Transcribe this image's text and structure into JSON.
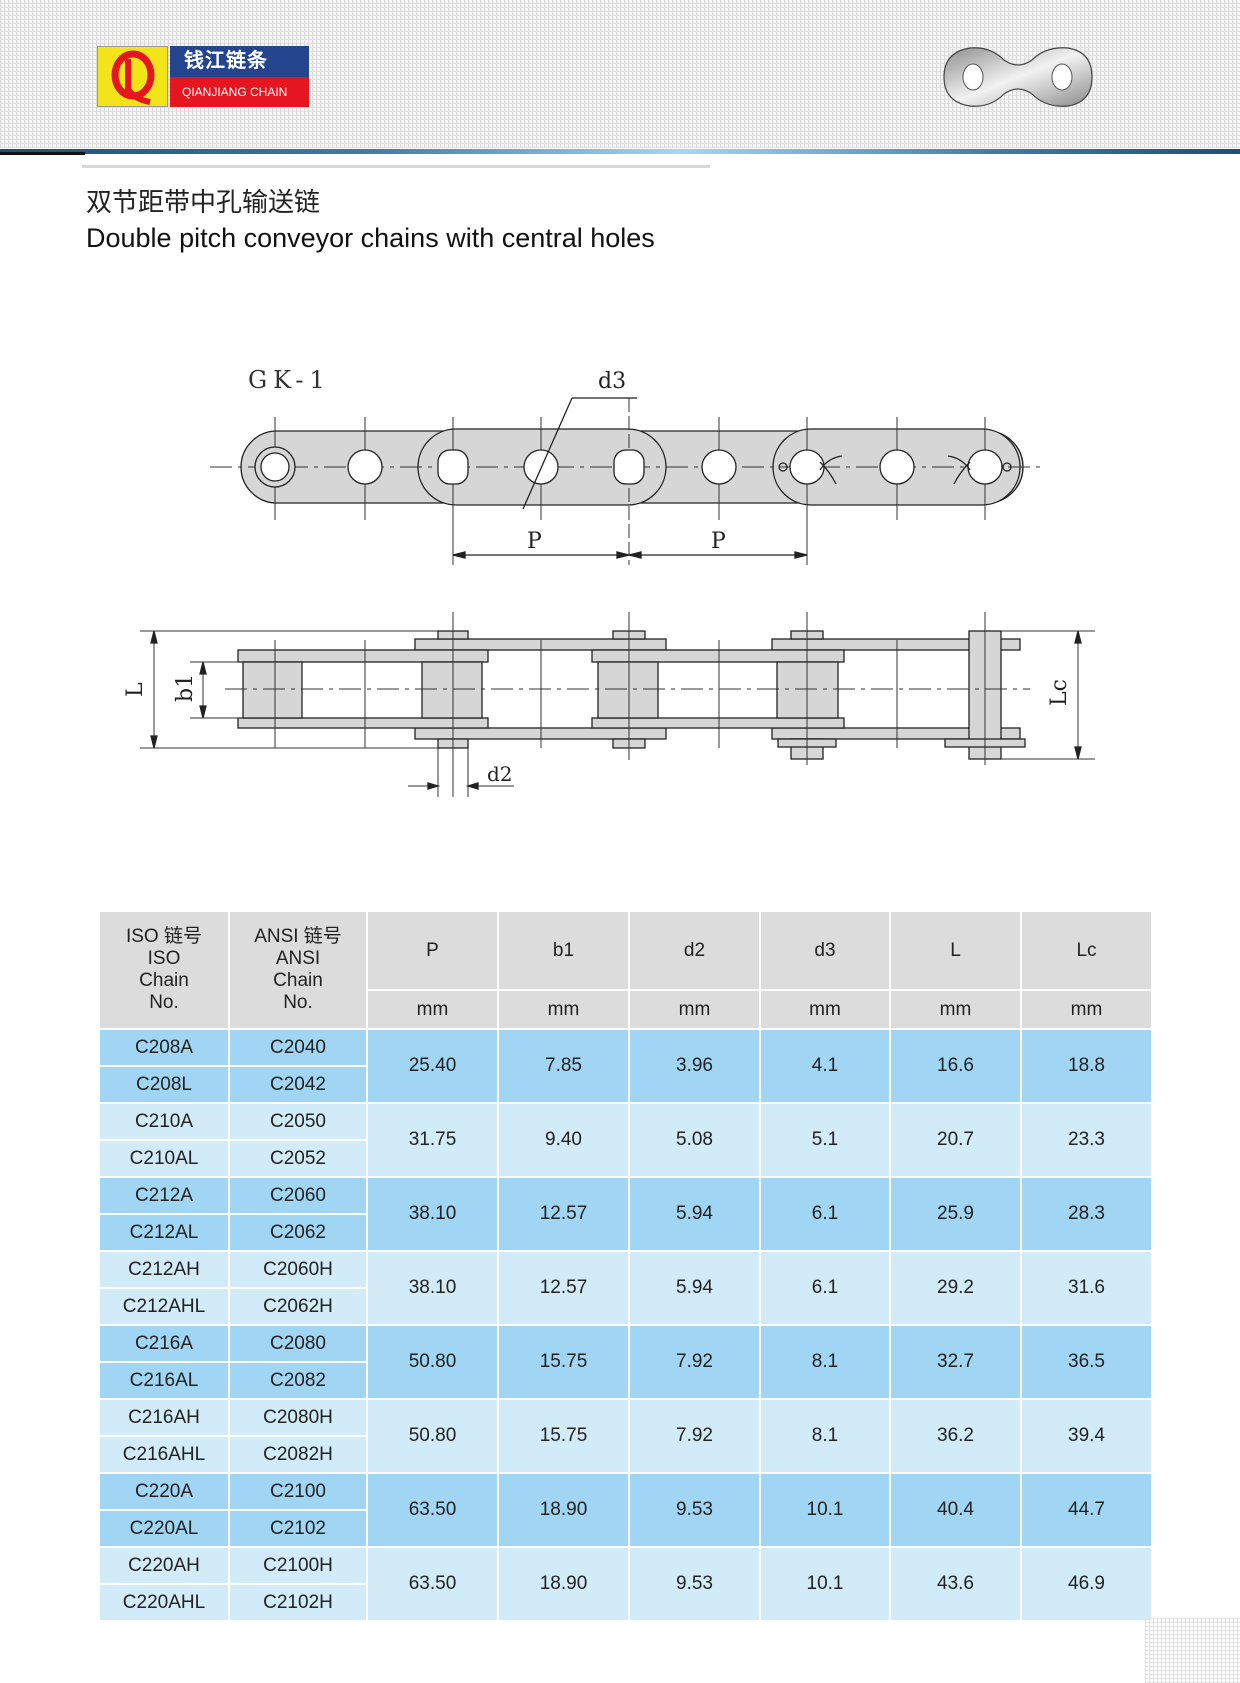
{
  "brand": {
    "logo_letters": "QL",
    "name_cn": "钱江链条",
    "name_en": "QIANJIANG CHAIN",
    "colors": {
      "yellow": "#f3e41a",
      "blue": "#24458e",
      "red": "#e5161f"
    }
  },
  "title": {
    "cn": "双节距带中孔输送链",
    "en": "Double pitch conveyor chains with central holes"
  },
  "drawing": {
    "model": "GK-1",
    "labels": {
      "d3": "d3",
      "p1": "P",
      "p2": "P",
      "L": "L",
      "b1": "b1",
      "Lc": "Lc",
      "d2": "d2"
    }
  },
  "table": {
    "headers": {
      "iso": [
        "ISO 链号",
        "ISO",
        "Chain",
        "No."
      ],
      "ansi": [
        "ANSI 链号",
        "ANSI",
        "Chain",
        "No."
      ],
      "cols": [
        "P",
        "b1",
        "d2",
        "d3",
        "L",
        "Lc"
      ],
      "unit": "mm"
    },
    "groups": [
      {
        "iso": [
          "C208A",
          "C208L"
        ],
        "ansi": [
          "C2040",
          "C2042"
        ],
        "values": [
          "25.40",
          "7.85",
          "3.96",
          "4.1",
          "16.6",
          "18.8"
        ]
      },
      {
        "iso": [
          "C210A",
          "C210AL"
        ],
        "ansi": [
          "C2050",
          "C2052"
        ],
        "values": [
          "31.75",
          "9.40",
          "5.08",
          "5.1",
          "20.7",
          "23.3"
        ]
      },
      {
        "iso": [
          "C212A",
          "C212AL"
        ],
        "ansi": [
          "C2060",
          "C2062"
        ],
        "values": [
          "38.10",
          "12.57",
          "5.94",
          "6.1",
          "25.9",
          "28.3"
        ]
      },
      {
        "iso": [
          "C212AH",
          "C212AHL"
        ],
        "ansi": [
          "C2060H",
          "C2062H"
        ],
        "values": [
          "38.10",
          "12.57",
          "5.94",
          "6.1",
          "29.2",
          "31.6"
        ]
      },
      {
        "iso": [
          "C216A",
          "C216AL"
        ],
        "ansi": [
          "C2080",
          "C2082"
        ],
        "values": [
          "50.80",
          "15.75",
          "7.92",
          "8.1",
          "32.7",
          "36.5"
        ]
      },
      {
        "iso": [
          "C216AH",
          "C216AHL"
        ],
        "ansi": [
          "C2080H",
          "C2082H"
        ],
        "values": [
          "50.80",
          "15.75",
          "7.92",
          "8.1",
          "36.2",
          "39.4"
        ]
      },
      {
        "iso": [
          "C220A",
          "C220AL"
        ],
        "ansi": [
          "C2100",
          "C2102"
        ],
        "values": [
          "63.50",
          "18.90",
          "9.53",
          "10.1",
          "40.4",
          "44.7"
        ]
      },
      {
        "iso": [
          "C220AH",
          "C220AHL"
        ],
        "ansi": [
          "C2100H",
          "C2102H"
        ],
        "values": [
          "63.50",
          "18.90",
          "9.53",
          "10.1",
          "43.6",
          "46.9"
        ]
      }
    ],
    "colors": {
      "header": "#dcdcdc",
      "row_dark": "#a0d5f3",
      "row_light": "#d2ebf9"
    }
  }
}
